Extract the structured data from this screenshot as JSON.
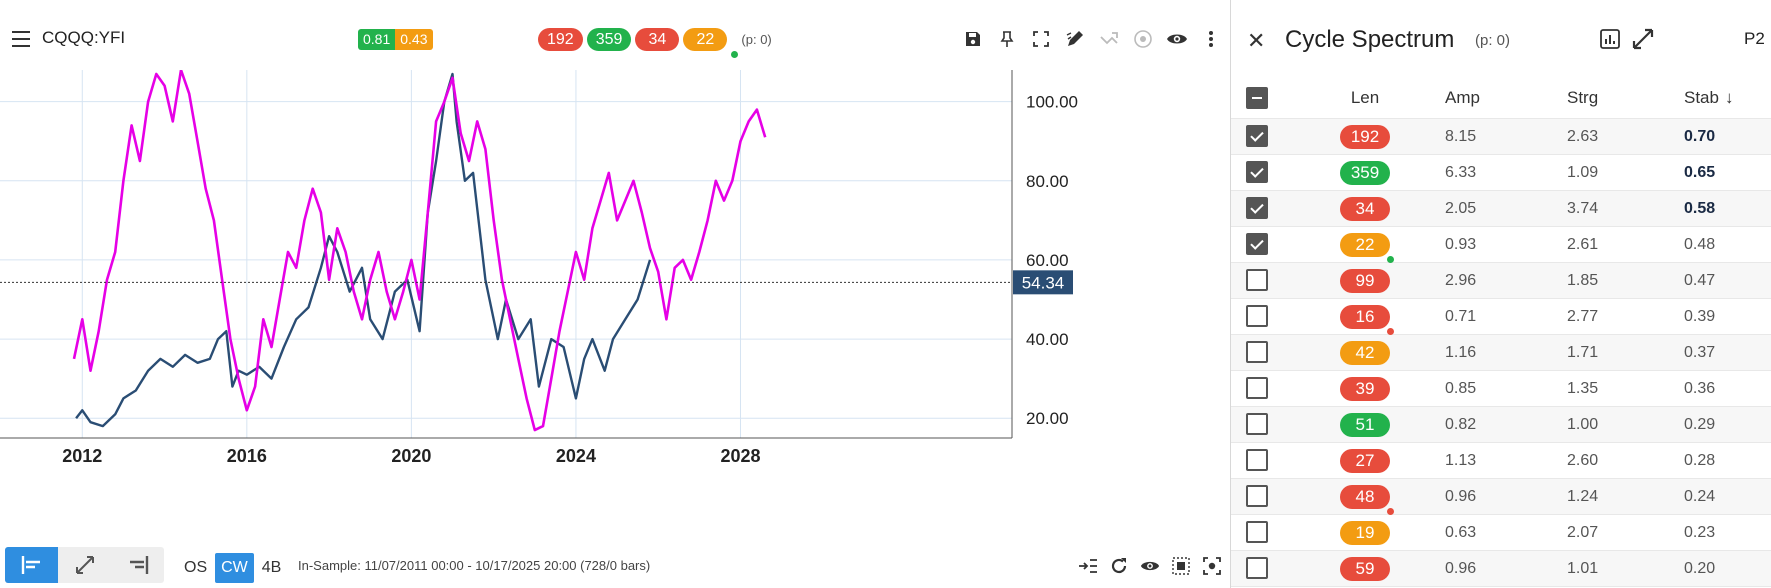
{
  "chart": {
    "symbol": "CQQQ:YFI",
    "metrics": [
      {
        "value": "0.81",
        "color": "#22b24c"
      },
      {
        "value": "0.43",
        "color": "#f39c12"
      }
    ],
    "cycle_badges": [
      {
        "value": "192",
        "color": "#e74c3c"
      },
      {
        "value": "359",
        "color": "#22b24c"
      },
      {
        "value": "34",
        "color": "#e74c3c"
      },
      {
        "value": "22",
        "color": "#f39c12"
      }
    ],
    "p_info": "(p: 0)",
    "price_label": "54.34",
    "in_sample": "In-Sample: 11/07/2011 00:00 - 10/17/2025 20:00 (728/0 bars)",
    "modes": [
      "OS",
      "CW",
      "4B"
    ],
    "active_mode": "CW",
    "toolbar_icons": [
      "save-icon",
      "pin-icon",
      "fullscreen-icon",
      "draw-icon",
      "projection-icon",
      "target-icon",
      "eye-icon",
      "more-icon"
    ],
    "bottom_icons": [
      "indent-icon",
      "refresh-icon",
      "eye-icon",
      "frame-icon",
      "focus-icon"
    ]
  },
  "chart_data": {
    "type": "line",
    "x_ticks": [
      "2012",
      "2016",
      "2020",
      "2024",
      "2028"
    ],
    "y_ticks": [
      "20.00",
      "40.00",
      "60.00",
      "80.00",
      "100.00"
    ],
    "ylim": [
      15,
      108
    ],
    "xlim": [
      2010.0,
      2034.6
    ],
    "current_price": 54.34,
    "series": [
      {
        "color": "#2a4d74",
        "x": [
          2011.85,
          2012.0,
          2012.2,
          2012.5,
          2012.8,
          2013.0,
          2013.3,
          2013.6,
          2013.9,
          2014.2,
          2014.5,
          2014.8,
          2015.1,
          2015.3,
          2015.5,
          2015.65,
          2015.8,
          2016.0,
          2016.3,
          2016.6,
          2016.9,
          2017.2,
          2017.5,
          2017.8,
          2018.0,
          2018.2,
          2018.5,
          2018.8,
          2019.0,
          2019.3,
          2019.6,
          2019.9,
          2020.2,
          2020.4,
          2020.6,
          2020.8,
          2021.0,
          2021.1,
          2021.3,
          2021.5,
          2021.8,
          2022.1,
          2022.3,
          2022.6,
          2022.9,
          2023.1,
          2023.4,
          2023.7,
          2024.0,
          2024.2,
          2024.4,
          2024.7,
          2024.9,
          2025.2,
          2025.5,
          2025.8
        ],
        "y": [
          20,
          22,
          19,
          18,
          21,
          25,
          27,
          32,
          35,
          33,
          36,
          34,
          35,
          40,
          42,
          28,
          32,
          31,
          33,
          30,
          38,
          45,
          48,
          58,
          66,
          62,
          52,
          58,
          45,
          40,
          52,
          55,
          42,
          72,
          85,
          100,
          107,
          95,
          80,
          82,
          55,
          40,
          50,
          40,
          45,
          28,
          40,
          38,
          25,
          35,
          40,
          32,
          40,
          45,
          50,
          60
        ]
      },
      {
        "color": "#e600e6",
        "x": [
          2011.8,
          2012.0,
          2012.2,
          2012.4,
          2012.6,
          2012.8,
          2013.0,
          2013.2,
          2013.4,
          2013.6,
          2013.8,
          2014.0,
          2014.2,
          2014.4,
          2014.6,
          2014.8,
          2015.0,
          2015.2,
          2015.4,
          2015.6,
          2015.8,
          2016.0,
          2016.2,
          2016.4,
          2016.6,
          2016.8,
          2017.0,
          2017.2,
          2017.4,
          2017.6,
          2017.8,
          2018.0,
          2018.2,
          2018.4,
          2018.6,
          2018.8,
          2019.0,
          2019.2,
          2019.4,
          2019.6,
          2019.8,
          2020.0,
          2020.2,
          2020.4,
          2020.6,
          2020.8,
          2021.0,
          2021.2,
          2021.4,
          2021.6,
          2021.8,
          2022.0,
          2022.2,
          2022.4,
          2022.6,
          2022.8,
          2023.0,
          2023.2,
          2023.4,
          2023.6,
          2023.8,
          2024.0,
          2024.2,
          2024.4,
          2024.6,
          2024.8,
          2025.0,
          2025.2,
          2025.4,
          2025.6,
          2025.8,
          2026.0,
          2026.2,
          2026.4,
          2026.6,
          2026.8,
          2027.0,
          2027.2,
          2027.4,
          2027.6,
          2027.8,
          2028.0,
          2028.2,
          2028.4,
          2028.6
        ],
        "y": [
          35,
          45,
          32,
          42,
          55,
          62,
          80,
          94,
          85,
          100,
          107,
          104,
          95,
          108,
          102,
          90,
          78,
          70,
          55,
          40,
          30,
          22,
          28,
          45,
          38,
          50,
          62,
          58,
          70,
          78,
          72,
          55,
          68,
          62,
          52,
          45,
          55,
          62,
          52,
          45,
          52,
          60,
          50,
          72,
          95,
          100,
          106,
          92,
          85,
          95,
          88,
          70,
          55,
          45,
          35,
          25,
          17,
          18,
          30,
          42,
          52,
          62,
          55,
          68,
          75,
          82,
          70,
          75,
          80,
          72,
          63,
          57,
          45,
          58,
          60,
          55,
          62,
          70,
          80,
          75,
          80,
          90,
          95,
          98,
          91
        ]
      }
    ]
  },
  "spectrum": {
    "title": "Cycle Spectrum",
    "p_info": "(p: 0)",
    "page": "P2",
    "headers": {
      "len": "Len",
      "amp": "Amp",
      "strg": "Strg",
      "stab": "Stab"
    },
    "rows": [
      {
        "len": "192",
        "color": "#e74c3c",
        "amp": "8.15",
        "strg": "2.63",
        "stab": "0.70",
        "checked": true,
        "bold": true,
        "dot": ""
      },
      {
        "len": "359",
        "color": "#22b24c",
        "amp": "6.33",
        "strg": "1.09",
        "stab": "0.65",
        "checked": true,
        "bold": true,
        "dot": ""
      },
      {
        "len": "34",
        "color": "#e74c3c",
        "amp": "2.05",
        "strg": "3.74",
        "stab": "0.58",
        "checked": true,
        "bold": true,
        "dot": ""
      },
      {
        "len": "22",
        "color": "#f39c12",
        "amp": "0.93",
        "strg": "2.61",
        "stab": "0.48",
        "checked": true,
        "bold": false,
        "dot": "#22b24c"
      },
      {
        "len": "99",
        "color": "#e74c3c",
        "amp": "2.96",
        "strg": "1.85",
        "stab": "0.47",
        "checked": false,
        "bold": false,
        "dot": ""
      },
      {
        "len": "16",
        "color": "#e74c3c",
        "amp": "0.71",
        "strg": "2.77",
        "stab": "0.39",
        "checked": false,
        "bold": false,
        "dot": "#e74c3c"
      },
      {
        "len": "42",
        "color": "#f39c12",
        "amp": "1.16",
        "strg": "1.71",
        "stab": "0.37",
        "checked": false,
        "bold": false,
        "dot": ""
      },
      {
        "len": "39",
        "color": "#e74c3c",
        "amp": "0.85",
        "strg": "1.35",
        "stab": "0.36",
        "checked": false,
        "bold": false,
        "dot": ""
      },
      {
        "len": "51",
        "color": "#22b24c",
        "amp": "0.82",
        "strg": "1.00",
        "stab": "0.29",
        "checked": false,
        "bold": false,
        "dot": ""
      },
      {
        "len": "27",
        "color": "#e74c3c",
        "amp": "1.13",
        "strg": "2.60",
        "stab": "0.28",
        "checked": false,
        "bold": false,
        "dot": ""
      },
      {
        "len": "48",
        "color": "#e74c3c",
        "amp": "0.96",
        "strg": "1.24",
        "stab": "0.24",
        "checked": false,
        "bold": false,
        "dot": "#e74c3c"
      },
      {
        "len": "19",
        "color": "#f39c12",
        "amp": "0.63",
        "strg": "2.07",
        "stab": "0.23",
        "checked": false,
        "bold": false,
        "dot": ""
      },
      {
        "len": "59",
        "color": "#e74c3c",
        "amp": "0.96",
        "strg": "1.01",
        "stab": "0.20",
        "checked": false,
        "bold": false,
        "dot": ""
      }
    ]
  }
}
